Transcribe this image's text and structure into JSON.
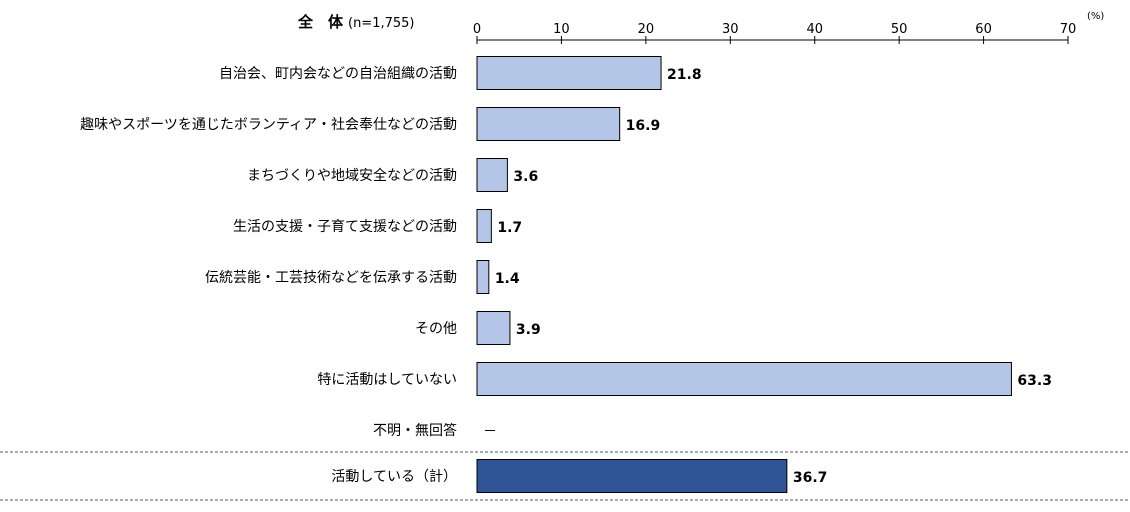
{
  "chart_data": {
    "type": "bar",
    "orientation": "horizontal",
    "title": "全　体",
    "subtitle": "(n=1,755)",
    "unit": "(%)",
    "xlim": [
      0,
      70
    ],
    "ticks": [
      "0",
      "10",
      "20",
      "30",
      "40",
      "50",
      "60",
      "70"
    ],
    "categories": [
      "自治会、町内会などの自治組織の活動",
      "趣味やスポーツを通じたボランティア・社会奉仕などの活動",
      "まちづくりや地域安全などの活動",
      "生活の支援・子育て支援などの活動",
      "伝統芸能・工芸技術などを伝承する活動",
      "その他",
      "特に活動はしていない",
      "不明・無回答"
    ],
    "values": [
      21.8,
      16.9,
      3.6,
      1.7,
      1.4,
      3.9,
      63.3,
      null
    ],
    "value_labels": [
      "21.8",
      "16.9",
      "3.6",
      "1.7",
      "1.4",
      "3.9",
      "63.3",
      "－"
    ],
    "summary": {
      "category": "活動している（計）",
      "value": 36.7,
      "value_label": "36.7"
    },
    "colors": {
      "bar": "#b4c6e7",
      "summary_bar": "#2f5597",
      "bar_border": "#000000"
    },
    "grid": false
  }
}
